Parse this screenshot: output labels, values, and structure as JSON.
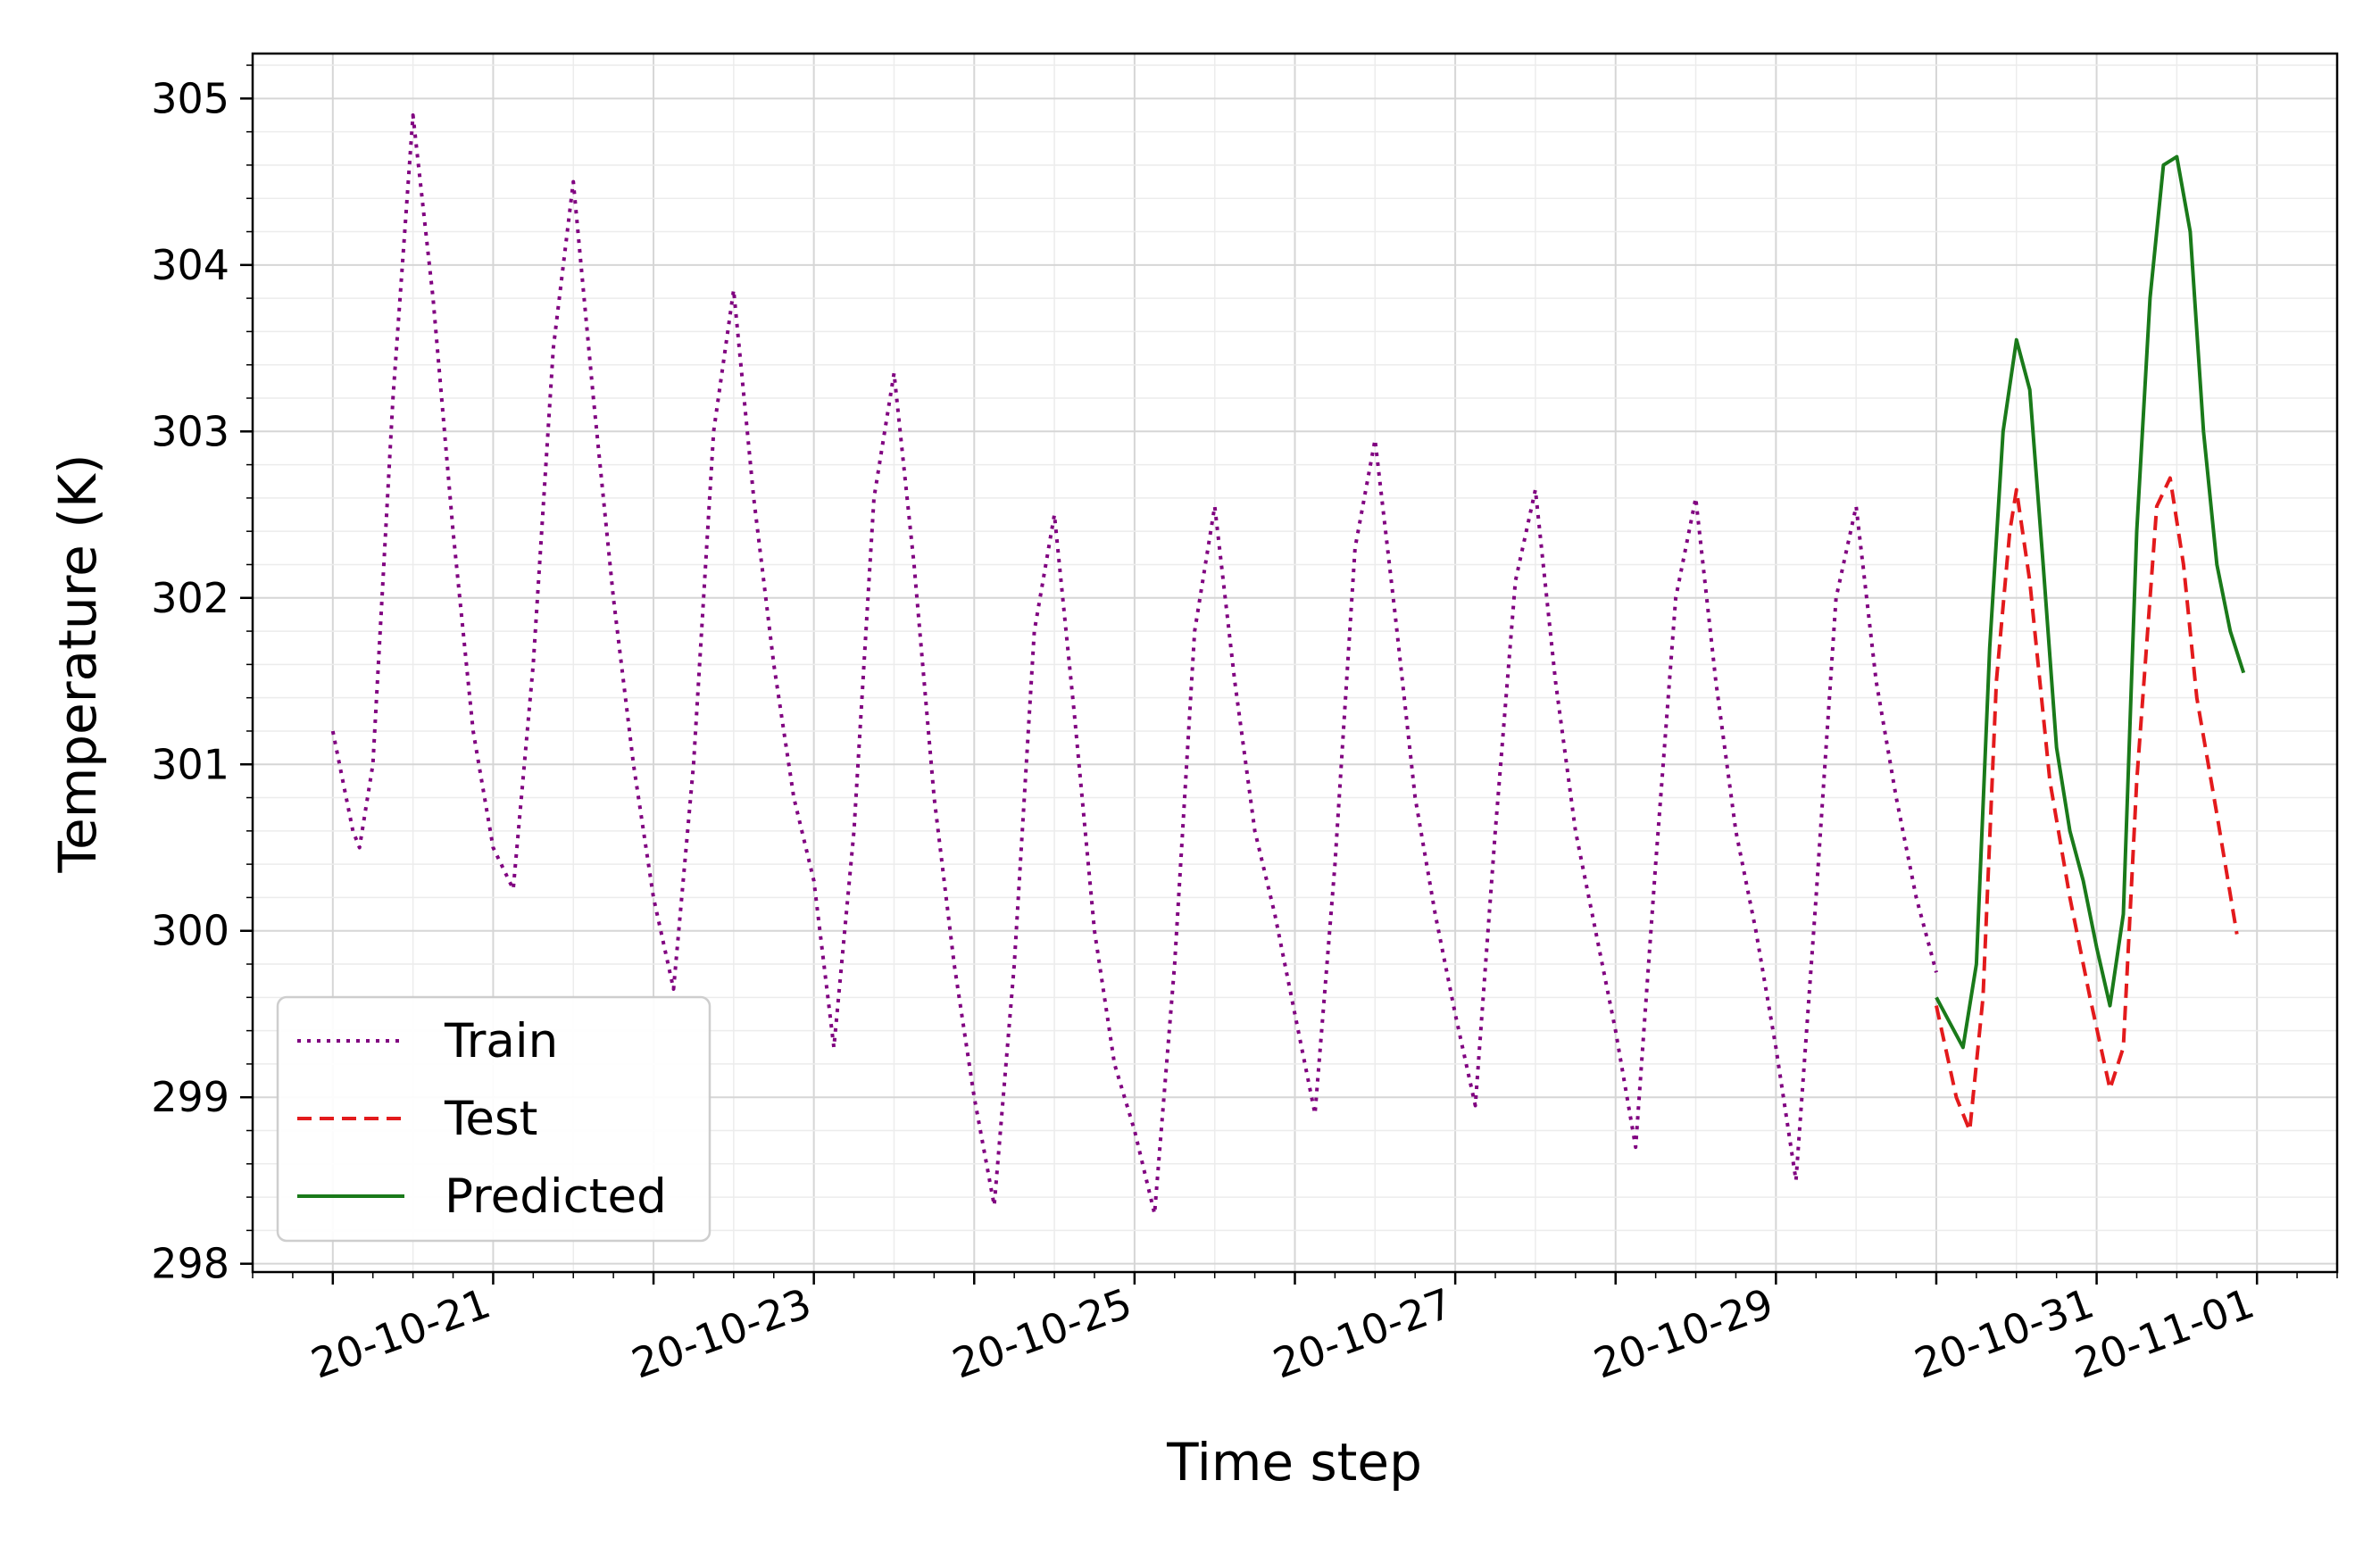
{
  "chart_data": {
    "type": "line",
    "title": "",
    "xlabel": "Time step",
    "ylabel": "Temperature (K)",
    "x_ticks": [
      "20-10-21",
      "20-10-23",
      "20-10-25",
      "20-10-27",
      "20-10-29",
      "20-10-31",
      "20-11-01"
    ],
    "y_ticks": [
      "298",
      "299",
      "300",
      "301",
      "302",
      "303",
      "304",
      "305"
    ],
    "xlim": [
      "2020-10-19T12:00",
      "2020-11-01T12:00"
    ],
    "ylim": [
      297.95,
      305.27
    ],
    "grid": true,
    "legend_position": "lower-left",
    "series": [
      {
        "name": "Train",
        "color": "#800080",
        "style": "dotted",
        "points": [
          [
            "2020-10-20T00:00",
            301.2
          ],
          [
            "2020-10-20T03:00",
            300.6
          ],
          [
            "2020-10-20T04:00",
            300.5
          ],
          [
            "2020-10-20T06:00",
            301.0
          ],
          [
            "2020-10-20T09:00",
            303.2
          ],
          [
            "2020-10-20T12:00",
            304.9
          ],
          [
            "2020-10-20T15:00",
            303.8
          ],
          [
            "2020-10-20T18:00",
            302.4
          ],
          [
            "2020-10-20T21:00",
            301.2
          ],
          [
            "2020-10-21T00:00",
            300.5
          ],
          [
            "2020-10-21T03:00",
            300.25
          ],
          [
            "2020-10-21T06:00",
            301.6
          ],
          [
            "2020-10-21T09:00",
            303.5
          ],
          [
            "2020-10-21T12:00",
            304.5
          ],
          [
            "2020-10-21T15:00",
            303.2
          ],
          [
            "2020-10-21T18:00",
            302.0
          ],
          [
            "2020-10-21T21:00",
            301.0
          ],
          [
            "2020-10-22T00:00",
            300.2
          ],
          [
            "2020-10-22T03:00",
            299.65
          ],
          [
            "2020-10-22T06:00",
            301.0
          ],
          [
            "2020-10-22T09:00",
            303.0
          ],
          [
            "2020-10-22T12:00",
            303.85
          ],
          [
            "2020-10-22T15:00",
            302.6
          ],
          [
            "2020-10-22T18:00",
            301.6
          ],
          [
            "2020-10-22T21:00",
            300.8
          ],
          [
            "2020-10-23T00:00",
            300.3
          ],
          [
            "2020-10-23T03:00",
            299.3
          ],
          [
            "2020-10-23T06:00",
            300.6
          ],
          [
            "2020-10-23T09:00",
            302.6
          ],
          [
            "2020-10-23T12:00",
            303.35
          ],
          [
            "2020-10-23T15:00",
            302.2
          ],
          [
            "2020-10-23T18:00",
            300.8
          ],
          [
            "2020-10-23T21:00",
            299.8
          ],
          [
            "2020-10-24T00:00",
            299.0
          ],
          [
            "2020-10-24T03:00",
            298.35
          ],
          [
            "2020-10-24T06:00",
            299.8
          ],
          [
            "2020-10-24T09:00",
            301.8
          ],
          [
            "2020-10-24T12:00",
            302.5
          ],
          [
            "2020-10-24T15:00",
            301.3
          ],
          [
            "2020-10-24T18:00",
            300.0
          ],
          [
            "2020-10-24T21:00",
            299.2
          ],
          [
            "2020-10-25T00:00",
            298.8
          ],
          [
            "2020-10-25T03:00",
            298.3
          ],
          [
            "2020-10-25T06:00",
            299.8
          ],
          [
            "2020-10-25T09:00",
            301.8
          ],
          [
            "2020-10-25T12:00",
            302.55
          ],
          [
            "2020-10-25T15:00",
            301.5
          ],
          [
            "2020-10-25T18:00",
            300.6
          ],
          [
            "2020-10-25T21:00",
            300.1
          ],
          [
            "2020-10-26T00:00",
            299.5
          ],
          [
            "2020-10-26T03:00",
            298.9
          ],
          [
            "2020-10-26T06:00",
            300.4
          ],
          [
            "2020-10-26T09:00",
            302.3
          ],
          [
            "2020-10-26T12:00",
            302.95
          ],
          [
            "2020-10-26T15:00",
            301.9
          ],
          [
            "2020-10-26T18:00",
            300.8
          ],
          [
            "2020-10-26T21:00",
            300.1
          ],
          [
            "2020-10-27T00:00",
            299.5
          ],
          [
            "2020-10-27T03:00",
            298.95
          ],
          [
            "2020-10-27T06:00",
            300.6
          ],
          [
            "2020-10-27T09:00",
            302.1
          ],
          [
            "2020-10-27T12:00",
            302.65
          ],
          [
            "2020-10-27T15:00",
            301.5
          ],
          [
            "2020-10-27T18:00",
            300.6
          ],
          [
            "2020-10-27T21:00",
            300.0
          ],
          [
            "2020-10-28T00:00",
            299.4
          ],
          [
            "2020-10-28T03:00",
            298.7
          ],
          [
            "2020-10-28T06:00",
            300.4
          ],
          [
            "2020-10-28T09:00",
            302.0
          ],
          [
            "2020-10-28T12:00",
            302.6
          ],
          [
            "2020-10-28T15:00",
            301.5
          ],
          [
            "2020-10-28T18:00",
            300.6
          ],
          [
            "2020-10-28T21:00",
            300.0
          ],
          [
            "2020-10-29T00:00",
            299.3
          ],
          [
            "2020-10-29T03:00",
            298.5
          ],
          [
            "2020-10-29T06:00",
            300.2
          ],
          [
            "2020-10-29T09:00",
            302.0
          ],
          [
            "2020-10-29T12:00",
            302.55
          ],
          [
            "2020-10-29T15:00",
            301.5
          ],
          [
            "2020-10-29T18:00",
            300.8
          ],
          [
            "2020-10-29T21:00",
            300.2
          ],
          [
            "2020-10-30T00:00",
            299.75
          ]
        ]
      },
      {
        "name": "Test",
        "color": "#e31a1c",
        "style": "dashed",
        "points": [
          [
            "2020-10-30T00:00",
            299.55
          ],
          [
            "2020-10-30T03:00",
            299.0
          ],
          [
            "2020-10-30T05:00",
            298.8
          ],
          [
            "2020-10-30T07:00",
            299.6
          ],
          [
            "2020-10-30T09:00",
            301.5
          ],
          [
            "2020-10-30T11:00",
            302.4
          ],
          [
            "2020-10-30T12:00",
            302.65
          ],
          [
            "2020-10-30T14:00",
            302.1
          ],
          [
            "2020-10-30T17:00",
            300.9
          ],
          [
            "2020-10-30T20:00",
            300.2
          ],
          [
            "2020-10-30T23:00",
            299.6
          ],
          [
            "2020-10-31T02:00",
            299.05
          ],
          [
            "2020-10-31T04:00",
            299.3
          ],
          [
            "2020-10-31T06:00",
            300.9
          ],
          [
            "2020-10-31T09:00",
            302.55
          ],
          [
            "2020-10-31T11:00",
            302.72
          ],
          [
            "2020-10-31T13:00",
            302.2
          ],
          [
            "2020-10-31T15:00",
            301.4
          ],
          [
            "2020-10-31T18:00",
            300.7
          ],
          [
            "2020-10-31T21:00",
            299.98
          ]
        ]
      },
      {
        "name": "Predicted",
        "color": "#1a7a1a",
        "style": "solid",
        "points": [
          [
            "2020-10-30T00:00",
            299.6
          ],
          [
            "2020-10-30T02:00",
            299.45
          ],
          [
            "2020-10-30T04:00",
            299.3
          ],
          [
            "2020-10-30T06:00",
            299.8
          ],
          [
            "2020-10-30T08:00",
            301.7
          ],
          [
            "2020-10-30T10:00",
            303.0
          ],
          [
            "2020-10-30T12:00",
            303.55
          ],
          [
            "2020-10-30T14:00",
            303.25
          ],
          [
            "2020-10-30T16:00",
            302.2
          ],
          [
            "2020-10-30T18:00",
            301.1
          ],
          [
            "2020-10-30T20:00",
            300.6
          ],
          [
            "2020-10-30T22:00",
            300.3
          ],
          [
            "2020-10-31T00:00",
            299.9
          ],
          [
            "2020-10-31T02:00",
            299.55
          ],
          [
            "2020-10-31T04:00",
            300.1
          ],
          [
            "2020-10-31T06:00",
            302.4
          ],
          [
            "2020-10-31T08:00",
            303.8
          ],
          [
            "2020-10-31T10:00",
            304.6
          ],
          [
            "2020-10-31T12:00",
            304.65
          ],
          [
            "2020-10-31T14:00",
            304.2
          ],
          [
            "2020-10-31T16:00",
            303.0
          ],
          [
            "2020-10-31T18:00",
            302.2
          ],
          [
            "2020-10-31T20:00",
            301.8
          ],
          [
            "2020-10-31T22:00",
            301.55
          ]
        ]
      }
    ]
  }
}
